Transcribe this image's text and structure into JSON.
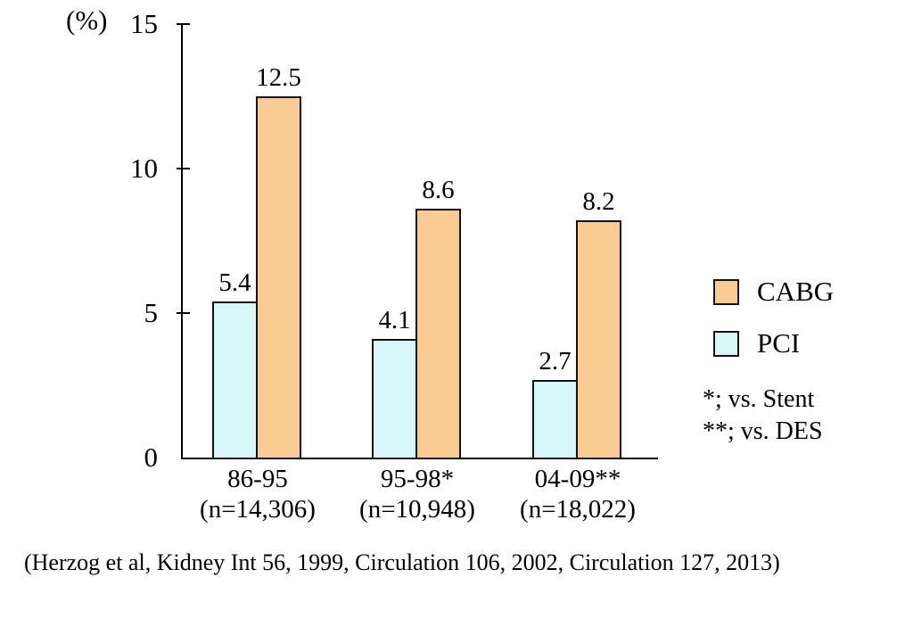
{
  "chart_data": {
    "type": "bar",
    "title": "",
    "ylabel": "(%)",
    "xlabel": "",
    "ylim": [
      0,
      15
    ],
    "yticks": [
      15,
      10,
      5,
      0
    ],
    "grid": false,
    "legend_position": "right",
    "categories": [
      {
        "period": "86-95",
        "n": "(n=14,306)"
      },
      {
        "period": "95-98*",
        "n": "(n=10,948)"
      },
      {
        "period": "04-09**",
        "n": "(n=18,022)"
      }
    ],
    "series": [
      {
        "name": "CABG",
        "color": "#F9CB92",
        "values": [
          12.5,
          8.6,
          8.2
        ]
      },
      {
        "name": "PCI",
        "color": "#D7F7F8",
        "values": [
          5.4,
          4.1,
          2.7
        ]
      }
    ],
    "annotations": [
      "*; vs. Stent",
      "**; vs. DES"
    ]
  },
  "citation": "(Herzog et al, Kidney Int 56, 1999, Circulation 106, 2002,  Circulation 127, 2013)"
}
